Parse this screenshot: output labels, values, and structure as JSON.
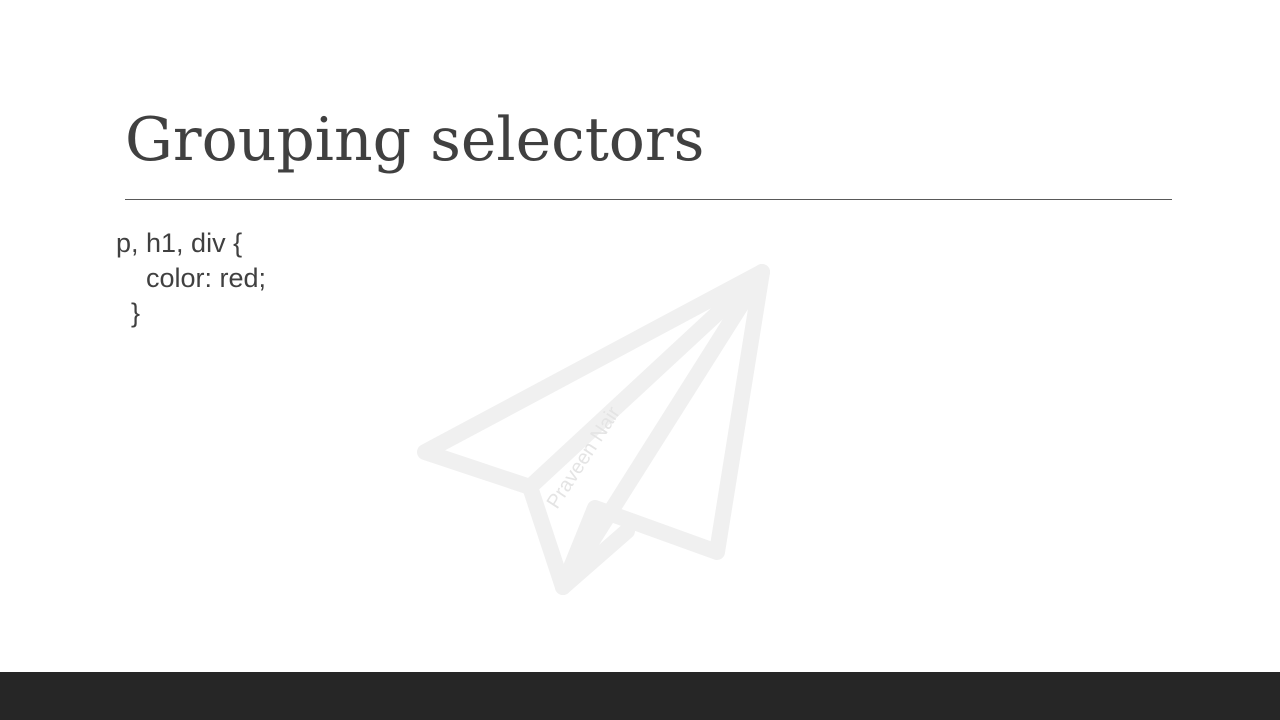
{
  "slide": {
    "title": "Grouping selectors",
    "code_lines": [
      "p, h1, div {",
      "    color: red;",
      "  }"
    ]
  },
  "watermark": {
    "icon": "paper-plane-icon",
    "text": "Praveen Nair",
    "color": "#f0f0f0"
  },
  "colors": {
    "title_text": "#404040",
    "body_text": "#404040",
    "rule": "#595959",
    "footer_bar": "#262626",
    "background": "#ffffff"
  }
}
